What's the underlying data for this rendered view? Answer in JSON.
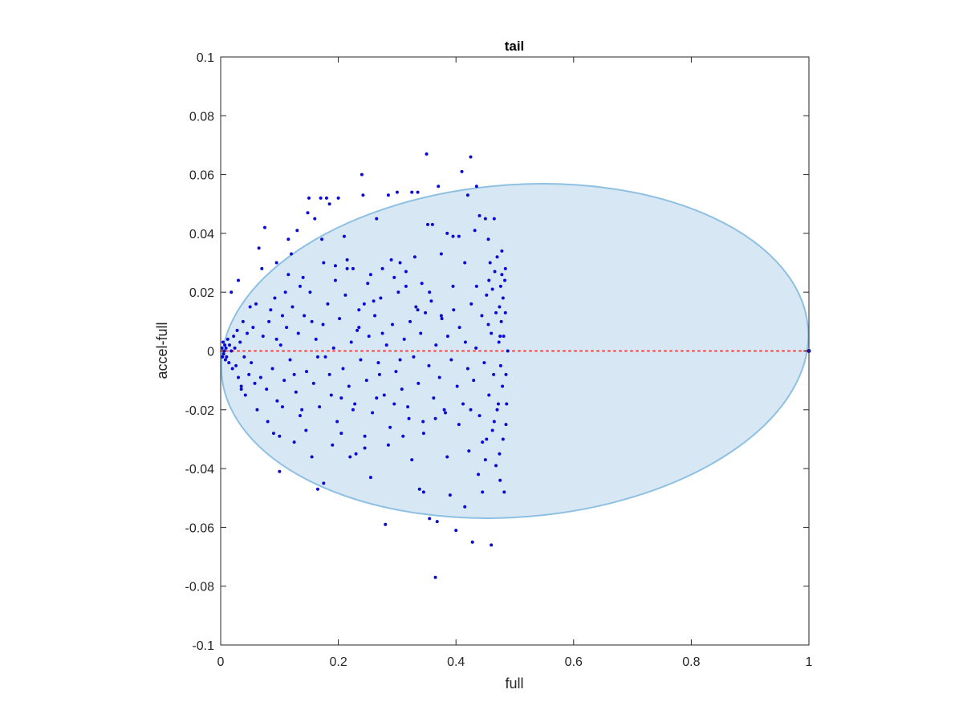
{
  "chart_data": {
    "type": "scatter",
    "title": "tail",
    "xlabel": "full",
    "ylabel": "accel-full",
    "xlim": [
      0,
      1
    ],
    "ylim": [
      -0.1,
      0.1
    ],
    "xticks": [
      0,
      0.2,
      0.4,
      0.6,
      0.8,
      1
    ],
    "xtick_labels": [
      "0",
      "0.2",
      "0.4",
      "0.6",
      "0.8",
      "1"
    ],
    "yticks": [
      -0.1,
      -0.08,
      -0.06,
      -0.04,
      -0.02,
      0,
      0.02,
      0.04,
      0.06,
      0.08,
      0.1
    ],
    "ytick_labels": [
      "-0.1",
      "-0.08",
      "-0.06",
      "-0.04",
      "-0.02",
      "0",
      "0.02",
      "0.04",
      "0.06",
      "0.08",
      "0.1"
    ],
    "grid": false,
    "ellipse": {
      "center_x": 0.5,
      "center_y": 0,
      "radius_x": 0.5,
      "radius_y": 0.0565,
      "rotation_deg": -4.5,
      "fill": "#d7e8f4",
      "stroke": "#8ec0e2"
    },
    "reference_line": {
      "y": 0,
      "x_range": [
        0,
        1
      ],
      "color": "#ff3b3b",
      "style": "dotted"
    },
    "marker_color": "#0a0ad4",
    "points": [
      [
        0.002,
        0.001
      ],
      [
        0.003,
        -0.002
      ],
      [
        0.004,
        0.003
      ],
      [
        0.005,
        -0.001
      ],
      [
        0.006,
        0.0
      ],
      [
        0.007,
        0.002
      ],
      [
        0.008,
        -0.003
      ],
      [
        0.009,
        0.001
      ],
      [
        0.01,
        -0.002
      ],
      [
        0.012,
        0.004
      ],
      [
        0.014,
        -0.004
      ],
      [
        0.015,
        0.002
      ],
      [
        0.018,
        0.0
      ],
      [
        0.02,
        -0.006
      ],
      [
        0.022,
        0.005
      ],
      [
        0.024,
        0.001
      ],
      [
        0.026,
        -0.005
      ],
      [
        0.028,
        0.007
      ],
      [
        0.03,
        -0.009
      ],
      [
        0.033,
        0.003
      ],
      [
        0.035,
        -0.012
      ],
      [
        0.038,
        0.01
      ],
      [
        0.04,
        -0.002
      ],
      [
        0.042,
        -0.015
      ],
      [
        0.045,
        0.006
      ],
      [
        0.048,
        -0.008
      ],
      [
        0.05,
        0.015
      ],
      [
        0.052,
        -0.004
      ],
      [
        0.055,
        0.008
      ],
      [
        0.058,
        -0.011
      ],
      [
        0.018,
        0.02
      ],
      [
        0.03,
        0.024
      ],
      [
        0.035,
        -0.013
      ],
      [
        0.065,
        0.035
      ],
      [
        0.07,
        0.028
      ],
      [
        0.075,
        0.042
      ],
      [
        0.08,
        -0.024
      ],
      [
        0.085,
        0.014
      ],
      [
        0.09,
        -0.028
      ],
      [
        0.095,
        0.03
      ],
      [
        0.1,
        -0.041
      ],
      [
        0.1,
        -0.029
      ],
      [
        0.105,
        0.012
      ],
      [
        0.11,
        0.02
      ],
      [
        0.115,
        0.038
      ],
      [
        0.12,
        0.033
      ],
      [
        0.125,
        -0.031
      ],
      [
        0.13,
        0.041
      ],
      [
        0.135,
        -0.022
      ],
      [
        0.14,
        0.025
      ],
      [
        0.148,
        0.047
      ],
      [
        0.15,
        0.052
      ],
      [
        0.155,
        -0.036
      ],
      [
        0.16,
        0.045
      ],
      [
        0.165,
        -0.047
      ],
      [
        0.17,
        0.052
      ],
      [
        0.172,
        0.038
      ],
      [
        0.175,
        -0.045
      ],
      [
        0.18,
        0.052
      ],
      [
        0.185,
        0.05
      ],
      [
        0.19,
        -0.032
      ],
      [
        0.195,
        0.029
      ],
      [
        0.2,
        0.052
      ],
      [
        0.205,
        -0.028
      ],
      [
        0.21,
        0.039
      ],
      [
        0.215,
        0.031
      ],
      [
        0.22,
        -0.036
      ],
      [
        0.225,
        0.028
      ],
      [
        0.23,
        -0.035
      ],
      [
        0.235,
        0.014
      ],
      [
        0.24,
        0.06
      ],
      [
        0.242,
        0.053
      ],
      [
        0.245,
        -0.033
      ],
      [
        0.25,
        0.023
      ],
      [
        0.255,
        -0.043
      ],
      [
        0.26,
        0.017
      ],
      [
        0.265,
        0.045
      ],
      [
        0.27,
        -0.008
      ],
      [
        0.275,
        0.028
      ],
      [
        0.28,
        -0.059
      ],
      [
        0.285,
        0.053
      ],
      [
        0.29,
        0.031
      ],
      [
        0.295,
        -0.018
      ],
      [
        0.3,
        0.054
      ],
      [
        0.305,
        0.03
      ],
      [
        0.31,
        -0.029
      ],
      [
        0.315,
        0.022
      ],
      [
        0.32,
        -0.023
      ],
      [
        0.325,
        0.054
      ],
      [
        0.33,
        0.032
      ],
      [
        0.335,
        0.054
      ],
      [
        0.338,
        -0.047
      ],
      [
        0.342,
        0.023
      ],
      [
        0.345,
        -0.048
      ],
      [
        0.35,
        0.067
      ],
      [
        0.352,
        0.043
      ],
      [
        0.355,
        -0.057
      ],
      [
        0.36,
        0.043
      ],
      [
        0.365,
        -0.077
      ],
      [
        0.368,
        -0.058
      ],
      [
        0.37,
        0.056
      ],
      [
        0.375,
        0.033
      ],
      [
        0.38,
        -0.02
      ],
      [
        0.385,
        0.04
      ],
      [
        0.39,
        -0.049
      ],
      [
        0.395,
        0.039
      ],
      [
        0.4,
        -0.061
      ],
      [
        0.405,
        0.039
      ],
      [
        0.41,
        0.061
      ],
      [
        0.415,
        -0.053
      ],
      [
        0.42,
        0.053
      ],
      [
        0.422,
        -0.034
      ],
      [
        0.425,
        0.066
      ],
      [
        0.428,
        -0.065
      ],
      [
        0.432,
        0.041
      ],
      [
        0.435,
        0.056
      ],
      [
        0.438,
        -0.042
      ],
      [
        0.44,
        0.046
      ],
      [
        0.445,
        -0.048
      ],
      [
        0.45,
        0.045
      ],
      [
        0.452,
        -0.03
      ],
      [
        0.455,
        0.038
      ],
      [
        0.458,
        0.03
      ],
      [
        0.46,
        -0.066
      ],
      [
        0.462,
        0.021
      ],
      [
        0.465,
        0.045
      ],
      [
        0.468,
        -0.039
      ],
      [
        0.47,
        0.032
      ],
      [
        0.475,
        -0.044
      ],
      [
        0.478,
        0.034
      ],
      [
        0.48,
        0.018
      ],
      [
        0.482,
        -0.048
      ],
      [
        0.485,
        -0.025
      ],
      [
        0.483,
        0.024
      ],
      [
        0.481,
        0.005
      ],
      [
        0.479,
        -0.012
      ],
      [
        0.477,
        0.01
      ],
      [
        0.476,
        -0.005
      ],
      [
        0.474,
        0.015
      ],
      [
        0.472,
        -0.018
      ],
      [
        0.06,
        0.016
      ],
      [
        0.062,
        -0.02
      ],
      [
        0.068,
        -0.009
      ],
      [
        0.072,
        0.005
      ],
      [
        0.078,
        -0.013
      ],
      [
        0.082,
        0.01
      ],
      [
        0.088,
        -0.006
      ],
      [
        0.092,
        0.018
      ],
      [
        0.096,
        -0.017
      ],
      [
        0.102,
        0.002
      ],
      [
        0.108,
        -0.01
      ],
      [
        0.112,
        0.008
      ],
      [
        0.118,
        -0.003
      ],
      [
        0.122,
        0.015
      ],
      [
        0.128,
        -0.014
      ],
      [
        0.132,
        0.006
      ],
      [
        0.138,
        -0.02
      ],
      [
        0.142,
        0.012
      ],
      [
        0.146,
        -0.007
      ],
      [
        0.152,
        0.02
      ],
      [
        0.158,
        -0.011
      ],
      [
        0.162,
        0.004
      ],
      [
        0.168,
        -0.019
      ],
      [
        0.174,
        0.009
      ],
      [
        0.178,
        -0.002
      ],
      [
        0.182,
        0.016
      ],
      [
        0.188,
        -0.015
      ],
      [
        0.192,
        0.001
      ],
      [
        0.198,
        -0.024
      ],
      [
        0.202,
        0.011
      ],
      [
        0.208,
        -0.006
      ],
      [
        0.212,
        0.019
      ],
      [
        0.218,
        -0.012
      ],
      [
        0.222,
        0.003
      ],
      [
        0.228,
        -0.018
      ],
      [
        0.232,
        0.007
      ],
      [
        0.238,
        -0.003
      ],
      [
        0.244,
        0.016
      ],
      [
        0.248,
        -0.01
      ],
      [
        0.252,
        0.005
      ],
      [
        0.258,
        -0.021
      ],
      [
        0.262,
        0.012
      ],
      [
        0.268,
        -0.004
      ],
      [
        0.272,
        0.018
      ],
      [
        0.278,
        -0.015
      ],
      [
        0.282,
        0.002
      ],
      [
        0.288,
        -0.026
      ],
      [
        0.292,
        0.009
      ],
      [
        0.298,
        -0.007
      ],
      [
        0.302,
        0.02
      ],
      [
        0.308,
        -0.013
      ],
      [
        0.312,
        0.004
      ],
      [
        0.318,
        -0.019
      ],
      [
        0.322,
        0.01
      ],
      [
        0.328,
        -0.002
      ],
      [
        0.332,
        0.015
      ],
      [
        0.336,
        -0.011
      ],
      [
        0.34,
        0.006
      ],
      [
        0.344,
        -0.024
      ],
      [
        0.348,
        0.013
      ],
      [
        0.354,
        -0.005
      ],
      [
        0.358,
        0.017
      ],
      [
        0.362,
        -0.016
      ],
      [
        0.366,
        0.002
      ],
      [
        0.372,
        -0.009
      ],
      [
        0.376,
        0.011
      ],
      [
        0.382,
        -0.021
      ],
      [
        0.386,
        0.005
      ],
      [
        0.392,
        -0.003
      ],
      [
        0.396,
        0.014
      ],
      [
        0.402,
        -0.012
      ],
      [
        0.406,
        0.008
      ],
      [
        0.412,
        -0.018
      ],
      [
        0.416,
        0.003
      ],
      [
        0.42,
        -0.006
      ],
      [
        0.426,
        0.016
      ],
      [
        0.43,
        -0.01
      ],
      [
        0.434,
        0.001
      ],
      [
        0.44,
        -0.022
      ],
      [
        0.444,
        0.012
      ],
      [
        0.448,
        -0.004
      ],
      [
        0.452,
        0.019
      ],
      [
        0.456,
        -0.015
      ],
      [
        0.46,
        0.006
      ],
      [
        0.464,
        -0.008
      ],
      [
        0.468,
        0.013
      ],
      [
        0.47,
        -0.02
      ],
      [
        0.473,
        0.003
      ],
      [
        0.476,
        0.022
      ],
      [
        0.484,
        0.028
      ],
      [
        0.486,
        -0.018
      ],
      [
        0.488,
        0.0
      ],
      [
        0.484,
        0.013
      ],
      [
        0.48,
        -0.03
      ],
      [
        0.478,
        0.026
      ],
      [
        0.474,
        -0.035
      ],
      [
        0.466,
        0.027
      ],
      [
        0.462,
        -0.027
      ],
      [
        0.456,
        0.024
      ],
      [
        0.45,
        -0.037
      ],
      [
        0.095,
        0.004
      ],
      [
        0.105,
        -0.019
      ],
      [
        0.115,
        0.026
      ],
      [
        0.125,
        -0.008
      ],
      [
        0.135,
        0.022
      ],
      [
        0.145,
        -0.027
      ],
      [
        0.155,
        0.01
      ],
      [
        0.165,
        -0.002
      ],
      [
        0.175,
        0.03
      ],
      [
        0.185,
        -0.008
      ],
      [
        0.195,
        0.024
      ],
      [
        0.205,
        -0.016
      ],
      [
        0.215,
        0.028
      ],
      [
        0.225,
        -0.02
      ],
      [
        0.235,
        0.008
      ],
      [
        0.245,
        -0.029
      ],
      [
        0.255,
        0.026
      ],
      [
        0.265,
        -0.016
      ],
      [
        0.275,
        0.006
      ],
      [
        0.285,
        -0.032
      ],
      [
        0.295,
        0.025
      ],
      [
        0.305,
        -0.003
      ],
      [
        0.315,
        0.027
      ],
      [
        0.325,
        -0.037
      ],
      [
        0.335,
        0.014
      ],
      [
        0.345,
        -0.028
      ],
      [
        0.355,
        0.02
      ],
      [
        0.365,
        -0.023
      ],
      [
        0.375,
        0.012
      ],
      [
        0.385,
        -0.036
      ],
      [
        0.395,
        0.022
      ],
      [
        0.405,
        -0.025
      ],
      [
        0.415,
        0.03
      ],
      [
        0.425,
        -0.02
      ],
      [
        0.435,
        0.022
      ],
      [
        0.445,
        -0.031
      ],
      [
        0.455,
        0.009
      ],
      [
        0.465,
        -0.024
      ],
      [
        0.475,
        0.005
      ],
      [
        0.485,
        -0.008
      ]
    ]
  }
}
